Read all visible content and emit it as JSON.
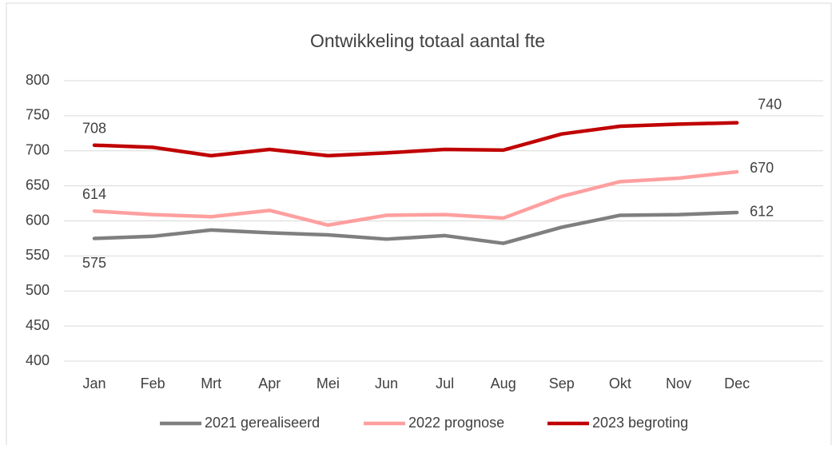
{
  "chart_data": {
    "type": "line",
    "title": "Ontwikkeling totaal aantal fte",
    "categories": [
      "Jan",
      "Feb",
      "Mrt",
      "Apr",
      "Mei",
      "Jun",
      "Jul",
      "Aug",
      "Sep",
      "Okt",
      "Nov",
      "Dec"
    ],
    "series": [
      {
        "name": "2021 gerealiseerd",
        "color": "#7f7f7f",
        "values": [
          575,
          578,
          587,
          583,
          580,
          574,
          579,
          568,
          591,
          608,
          609,
          612
        ]
      },
      {
        "name": "2022 prognose",
        "color": "#ff9f9f",
        "values": [
          614,
          609,
          606,
          615,
          594,
          608,
          609,
          604,
          635,
          656,
          661,
          670
        ]
      },
      {
        "name": "2023 begroting",
        "color": "#c00000",
        "values": [
          708,
          705,
          693,
          702,
          693,
          697,
          702,
          701,
          724,
          735,
          738,
          740
        ]
      }
    ],
    "ylim": [
      400,
      800
    ],
    "yticks": [
      400,
      450,
      500,
      550,
      600,
      650,
      700,
      750,
      800
    ],
    "grid": true,
    "legend": "bottom"
  }
}
